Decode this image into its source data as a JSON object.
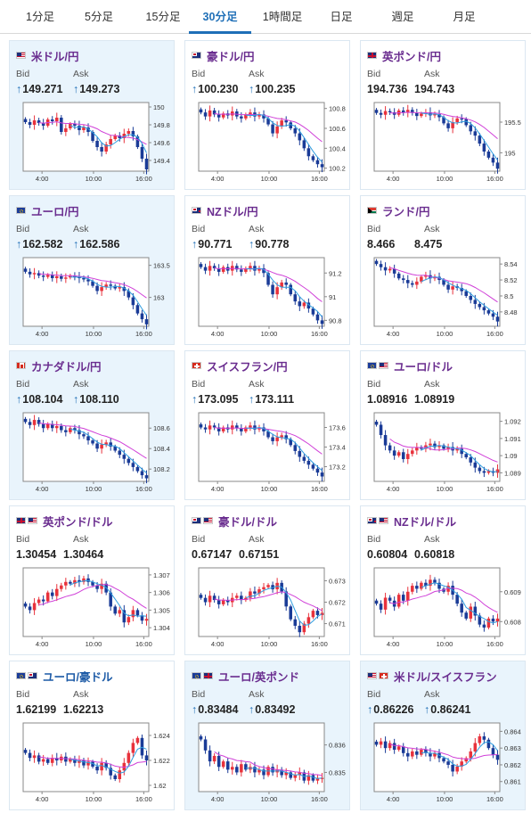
{
  "tabs": [
    {
      "label": "1分足",
      "active": false
    },
    {
      "label": "5分足",
      "active": false
    },
    {
      "label": "15分足",
      "active": false
    },
    {
      "label": "30分足",
      "active": true
    },
    {
      "label": "1時間足",
      "active": false
    },
    {
      "label": "日足",
      "active": false
    },
    {
      "label": "週足",
      "active": false
    },
    {
      "label": "月足",
      "active": false
    }
  ],
  "labels": {
    "bid": "Bid",
    "ask": "Ask",
    "up_arrow": "↑"
  },
  "colors": {
    "candle_up": "#e8323c",
    "candle_down": "#1a3b97",
    "ma_short": "#2f9ee0",
    "ma_long": "#d040d8",
    "name_purple": "#6a2d8f",
    "name_blue": "#1c5aa6",
    "accent": "#1f6fb7"
  },
  "cards": [
    {
      "name": "米ドル/円",
      "flag": "us",
      "bid": "149.271",
      "ask": "149.273",
      "arrow": true,
      "state": "up",
      "chart_data": {
        "type": "candlestick",
        "x_ticks": [
          "4:00",
          "10:00",
          "16:00"
        ],
        "y_ticks": [
          "150",
          "149.8",
          "149.6",
          "149.4"
        ],
        "ylim": [
          149.28,
          150.05
        ],
        "moving_averages": [
          "short",
          "long"
        ],
        "close": [
          149.83,
          149.8,
          149.85,
          149.82,
          149.79,
          149.86,
          149.84,
          149.88,
          149.72,
          149.76,
          149.81,
          149.79,
          149.74,
          149.77,
          149.72,
          149.62,
          149.55,
          149.5,
          149.58,
          149.64,
          149.68,
          149.65,
          149.7,
          149.73,
          149.67,
          149.55,
          149.42,
          149.3
        ]
      }
    },
    {
      "name": "豪ドル/円",
      "flag": "au",
      "bid": "100.230",
      "ask": "100.235",
      "arrow": true,
      "state": "flat",
      "chart_data": {
        "type": "candlestick",
        "x_ticks": [
          "4:00",
          "10:00",
          "16:00"
        ],
        "y_ticks": [
          "100.8",
          "100.6",
          "100.4",
          "100.2"
        ],
        "ylim": [
          100.17,
          100.86
        ],
        "moving_averages": [
          "short",
          "long"
        ],
        "close": [
          100.76,
          100.72,
          100.78,
          100.74,
          100.71,
          100.75,
          100.73,
          100.77,
          100.72,
          100.7,
          100.74,
          100.76,
          100.72,
          100.74,
          100.7,
          100.64,
          100.55,
          100.62,
          100.68,
          100.66,
          100.6,
          100.55,
          100.48,
          100.4,
          100.32,
          100.28,
          100.24,
          100.21
        ]
      }
    },
    {
      "name": "英ポンド/円",
      "flag": "uk",
      "bid": "194.736",
      "ask": "194.743",
      "arrow": false,
      "state": "flat",
      "chart_data": {
        "type": "candlestick",
        "x_ticks": [
          "4:00",
          "10:00",
          "16:00"
        ],
        "y_ticks": [
          "195.5",
          "195"
        ],
        "ylim": [
          194.7,
          195.82
        ],
        "moving_averages": [
          "short",
          "long"
        ],
        "close": [
          195.65,
          195.62,
          195.68,
          195.66,
          195.62,
          195.69,
          195.66,
          195.7,
          195.65,
          195.6,
          195.64,
          195.66,
          195.61,
          195.63,
          195.58,
          195.48,
          195.4,
          195.5,
          195.56,
          195.55,
          195.45,
          195.35,
          195.28,
          195.15,
          195.02,
          194.92,
          194.84,
          194.74
        ]
      }
    },
    {
      "name": "ユーロ/円",
      "flag": "eu",
      "bid": "162.582",
      "ask": "162.586",
      "arrow": true,
      "state": "up",
      "chart_data": {
        "type": "candlestick",
        "x_ticks": [
          "4:00",
          "10:00",
          "16:00"
        ],
        "y_ticks": [
          "163.5",
          "163"
        ],
        "ylim": [
          162.55,
          163.62
        ],
        "moving_averages": [
          "short",
          "long"
        ],
        "close": [
          163.4,
          163.36,
          163.38,
          163.34,
          163.32,
          163.35,
          163.3,
          163.33,
          163.29,
          163.31,
          163.34,
          163.32,
          163.3,
          163.28,
          163.25,
          163.18,
          163.1,
          163.16,
          163.2,
          163.18,
          163.14,
          163.16,
          163.1,
          163.0,
          162.88,
          162.75,
          162.66,
          162.58
        ]
      }
    },
    {
      "name": "NZドル/円",
      "flag": "nz",
      "bid": "90.771",
      "ask": "90.778",
      "arrow": true,
      "state": "flat",
      "chart_data": {
        "type": "candlestick",
        "x_ticks": [
          "4:00",
          "10:00",
          "16:00"
        ],
        "y_ticks": [
          "91.2",
          "91",
          "90.8"
        ],
        "ylim": [
          90.75,
          91.33
        ],
        "moving_averages": [
          "short",
          "long"
        ],
        "close": [
          91.25,
          91.22,
          91.26,
          91.24,
          91.21,
          91.25,
          91.22,
          91.26,
          91.23,
          91.21,
          91.24,
          91.26,
          91.22,
          91.24,
          91.2,
          91.1,
          91.02,
          91.08,
          91.12,
          91.1,
          91.02,
          90.96,
          90.92,
          90.95,
          90.9,
          90.85,
          90.8,
          90.77
        ]
      }
    },
    {
      "name": "ランド/円",
      "flag": "za",
      "bid": "8.466",
      "ask": "8.475",
      "arrow": false,
      "state": "flat",
      "chart_data": {
        "type": "candlestick",
        "x_ticks": [
          "4:00",
          "10:00",
          "16:00"
        ],
        "y_ticks": [
          "8.54",
          "8.52",
          "8.5",
          "8.48"
        ],
        "ylim": [
          8.462,
          8.548
        ],
        "moving_averages": [
          "short",
          "long"
        ],
        "close": [
          8.54,
          8.536,
          8.532,
          8.534,
          8.528,
          8.522,
          8.52,
          8.516,
          8.514,
          8.518,
          8.524,
          8.526,
          8.522,
          8.524,
          8.52,
          8.514,
          8.508,
          8.512,
          8.51,
          8.506,
          8.5,
          8.495,
          8.49,
          8.486,
          8.482,
          8.478,
          8.474,
          8.468
        ]
      }
    },
    {
      "name": "カナダドル/円",
      "flag": "ca",
      "bid": "108.104",
      "ask": "108.110",
      "arrow": true,
      "state": "up",
      "chart_data": {
        "type": "candlestick",
        "x_ticks": [
          "4:00",
          "10:00",
          "16:00"
        ],
        "y_ticks": [
          "108.6",
          "108.4",
          "108.2"
        ],
        "ylim": [
          108.08,
          108.75
        ],
        "moving_averages": [
          "short",
          "long"
        ],
        "close": [
          108.66,
          108.63,
          108.68,
          108.64,
          108.6,
          108.64,
          108.6,
          108.62,
          108.58,
          108.56,
          108.6,
          108.58,
          108.54,
          108.52,
          108.48,
          108.45,
          108.4,
          108.44,
          108.46,
          108.42,
          108.38,
          108.34,
          108.3,
          108.26,
          108.22,
          108.18,
          108.14,
          108.11
        ]
      }
    },
    {
      "name": "スイスフラン/円",
      "flag": "ch",
      "bid": "173.095",
      "ask": "173.111",
      "arrow": true,
      "state": "flat",
      "chart_data": {
        "type": "candlestick",
        "x_ticks": [
          "4:00",
          "10:00",
          "16:00"
        ],
        "y_ticks": [
          "173.6",
          "173.4",
          "173.2"
        ],
        "ylim": [
          173.05,
          173.75
        ],
        "moving_averages": [
          "short",
          "long"
        ],
        "close": [
          173.6,
          173.58,
          173.62,
          173.6,
          173.56,
          173.6,
          173.58,
          173.62,
          173.59,
          173.56,
          173.6,
          173.62,
          173.58,
          173.6,
          173.56,
          173.5,
          173.46,
          173.5,
          173.52,
          173.48,
          173.42,
          173.36,
          173.3,
          173.26,
          173.22,
          173.18,
          173.14,
          173.1
        ]
      }
    },
    {
      "name": "ユーロ/ドル",
      "flag": "eu",
      "flag2": "us",
      "bid": "1.08916",
      "ask": "1.08919",
      "arrow": false,
      "state": "flat",
      "chart_data": {
        "type": "candlestick",
        "x_ticks": [
          "4:00",
          "10:00",
          "16:00"
        ],
        "y_ticks": [
          "1.092",
          "1.091",
          "1.09",
          "1.089"
        ],
        "ylim": [
          1.0885,
          1.0925
        ],
        "moving_averages": [
          "short",
          "long"
        ],
        "close": [
          1.0918,
          1.0912,
          1.0906,
          1.0903,
          1.09,
          1.0902,
          1.0898,
          1.0901,
          1.0903,
          1.0905,
          1.0904,
          1.0906,
          1.0907,
          1.0905,
          1.0906,
          1.0904,
          1.0905,
          1.0903,
          1.0904,
          1.0901,
          1.0899,
          1.0896,
          1.0893,
          1.0891,
          1.089,
          1.0891,
          1.089,
          1.0892
        ]
      }
    },
    {
      "name": "英ポンド/ドル",
      "flag": "uk",
      "flag2": "us",
      "bid": "1.30454",
      "ask": "1.30464",
      "arrow": false,
      "state": "flat",
      "chart_data": {
        "type": "candlestick",
        "x_ticks": [
          "4:00",
          "10:00",
          "16:00"
        ],
        "y_ticks": [
          "1.307",
          "1.306",
          "1.305",
          "1.304"
        ],
        "ylim": [
          1.3035,
          1.3074
        ],
        "moving_averages": [
          "short",
          "long"
        ],
        "close": [
          1.3052,
          1.305,
          1.3054,
          1.3056,
          1.3055,
          1.306,
          1.3058,
          1.3062,
          1.3064,
          1.3066,
          1.3065,
          1.3067,
          1.3066,
          1.3068,
          1.3066,
          1.3064,
          1.3062,
          1.3065,
          1.306,
          1.3052,
          1.3048,
          1.305,
          1.3043,
          1.3046,
          1.305,
          1.3047,
          1.3044,
          1.3045
        ]
      }
    },
    {
      "name": "豪ドル/ドル",
      "flag": "au",
      "flag2": "us",
      "bid": "0.67147",
      "ask": "0.67151",
      "arrow": false,
      "state": "flat",
      "chart_data": {
        "type": "candlestick",
        "x_ticks": [
          "4:00",
          "10:00",
          "16:00"
        ],
        "y_ticks": [
          "0.673",
          "0.672",
          "0.671"
        ],
        "ylim": [
          0.6704,
          0.6736
        ],
        "moving_averages": [
          "short",
          "long"
        ],
        "close": [
          0.6722,
          0.672,
          0.6723,
          0.6721,
          0.6719,
          0.6721,
          0.672,
          0.6722,
          0.6723,
          0.6721,
          0.6722,
          0.6725,
          0.6724,
          0.6726,
          0.6727,
          0.6728,
          0.6726,
          0.6729,
          0.6725,
          0.6718,
          0.6712,
          0.6709,
          0.6706,
          0.671,
          0.6713,
          0.6716,
          0.6714,
          0.6715
        ]
      }
    },
    {
      "name": "NZドル/ドル",
      "flag": "nz",
      "flag2": "us",
      "bid": "0.60804",
      "ask": "0.60818",
      "arrow": false,
      "state": "flat",
      "chart_data": {
        "type": "candlestick",
        "x_ticks": [
          "4:00",
          "10:00",
          "16:00"
        ],
        "y_ticks": [
          "0.609",
          "0.608"
        ],
        "ylim": [
          0.6075,
          0.6098
        ],
        "moving_averages": [
          "short",
          "long"
        ],
        "close": [
          0.6086,
          0.6084,
          0.6088,
          0.6087,
          0.6085,
          0.6089,
          0.6087,
          0.609,
          0.6092,
          0.6091,
          0.6093,
          0.6092,
          0.6094,
          0.6093,
          0.6091,
          0.609,
          0.6092,
          0.6089,
          0.6086,
          0.6083,
          0.6081,
          0.6085,
          0.6082,
          0.6079,
          0.6078,
          0.6081,
          0.608,
          0.6081
        ]
      }
    },
    {
      "name": "ユーロ/豪ドル",
      "flag": "eu",
      "flag2": "au",
      "bid": "1.62199",
      "ask": "1.62213",
      "arrow": false,
      "state": "flat",
      "chart_data": {
        "type": "candlestick",
        "x_ticks": [
          "4:00",
          "10:00",
          "16:00"
        ],
        "y_ticks": [
          "1.624",
          "1.622",
          "1.62"
        ],
        "ylim": [
          1.6195,
          1.625
        ],
        "moving_averages": [
          "short",
          "long"
        ],
        "close": [
          1.6226,
          1.6222,
          1.6224,
          1.6219,
          1.6221,
          1.6218,
          1.6222,
          1.622,
          1.6223,
          1.6219,
          1.6221,
          1.6218,
          1.622,
          1.6216,
          1.6219,
          1.6215,
          1.6212,
          1.6218,
          1.6214,
          1.6208,
          1.6205,
          1.6212,
          1.6218,
          1.6226,
          1.6234,
          1.6238,
          1.6224,
          1.622
        ]
      }
    },
    {
      "name": "ユーロ/英ポンド",
      "flag": "eu",
      "flag2": "uk",
      "bid": "0.83484",
      "ask": "0.83492",
      "arrow": true,
      "state": "up",
      "chart_data": {
        "type": "candlestick",
        "x_ticks": [
          "4:00",
          "10:00",
          "16:00"
        ],
        "y_ticks": [
          "0.836",
          "0.835"
        ],
        "ylim": [
          0.8343,
          0.8368
        ],
        "moving_averages": [
          "short",
          "long"
        ],
        "close": [
          0.8362,
          0.8358,
          0.8354,
          0.8356,
          0.8352,
          0.8354,
          0.8351,
          0.8352,
          0.835,
          0.8353,
          0.8351,
          0.8352,
          0.835,
          0.8351,
          0.8349,
          0.8352,
          0.835,
          0.8351,
          0.8349,
          0.835,
          0.8348,
          0.8349,
          0.835,
          0.8347,
          0.8349,
          0.8347,
          0.8348,
          0.8348
        ]
      }
    },
    {
      "name": "米ドル/スイスフラン",
      "flag": "us",
      "flag2": "ch",
      "bid": "0.86226",
      "ask": "0.86241",
      "arrow": true,
      "state": "up",
      "chart_data": {
        "type": "candlestick",
        "x_ticks": [
          "4:00",
          "10:00",
          "16:00"
        ],
        "y_ticks": [
          "0.864",
          "0.863",
          "0.862",
          "0.861"
        ],
        "ylim": [
          0.8604,
          0.8645
        ],
        "moving_averages": [
          "short",
          "long"
        ],
        "close": [
          0.8632,
          0.8634,
          0.863,
          0.8633,
          0.8629,
          0.8631,
          0.8627,
          0.8625,
          0.8628,
          0.8626,
          0.8629,
          0.8627,
          0.8625,
          0.8627,
          0.8624,
          0.8622,
          0.862,
          0.8616,
          0.8619,
          0.8622,
          0.8624,
          0.8628,
          0.8633,
          0.8637,
          0.8635,
          0.863,
          0.8626,
          0.8623
        ]
      }
    }
  ]
}
